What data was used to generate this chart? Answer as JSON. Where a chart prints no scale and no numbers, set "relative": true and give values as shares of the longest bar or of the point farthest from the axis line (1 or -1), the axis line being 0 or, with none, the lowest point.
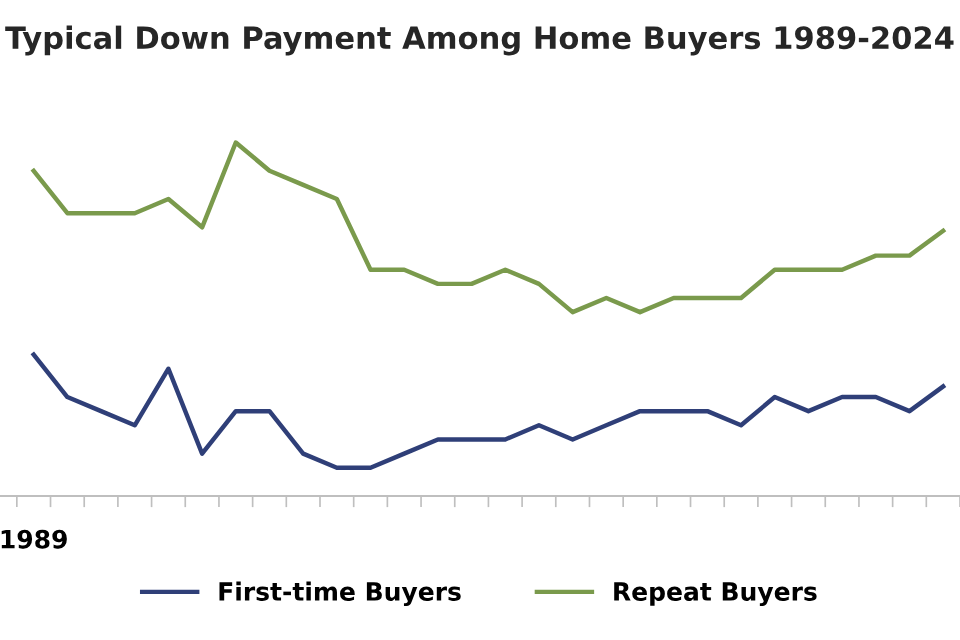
{
  "chart_data": {
    "type": "line",
    "title": "Typical Down Payment Among Home Buyers 1989-2024",
    "relative": true,
    "annotations": [
      "1989"
    ],
    "categories": [
      null,
      null,
      null,
      null,
      null,
      null,
      null,
      null,
      null,
      null,
      null,
      null,
      null,
      null,
      null,
      null,
      null,
      null,
      null,
      null,
      null,
      null,
      null,
      null,
      null,
      null,
      null,
      null
    ],
    "series": [
      {
        "name": "First-time Buyers",
        "color": "#2f3f78",
        "values": [
          0.4,
          0.28,
          0.24,
          0.2,
          0.36,
          0.12,
          0.24,
          0.24,
          0.12,
          0.08,
          0.08,
          0.12,
          0.16,
          0.16,
          0.16,
          0.2,
          0.16,
          0.2,
          0.24,
          0.24,
          0.24,
          0.2,
          0.28,
          0.24,
          0.28,
          0.28,
          0.24,
          0.31
        ]
      },
      {
        "name": "Repeat Buyers",
        "color": "#7a9a4c",
        "values": [
          0.92,
          0.8,
          0.8,
          0.8,
          0.84,
          0.76,
          1.0,
          0.92,
          0.88,
          0.84,
          0.64,
          0.64,
          0.6,
          0.6,
          0.64,
          0.6,
          0.52,
          0.56,
          0.52,
          0.56,
          0.56,
          0.56,
          0.64,
          0.64,
          0.64,
          0.68,
          0.68,
          0.75
        ]
      }
    ],
    "legend": "bottom",
    "marker": "none",
    "line_style": "solid"
  }
}
